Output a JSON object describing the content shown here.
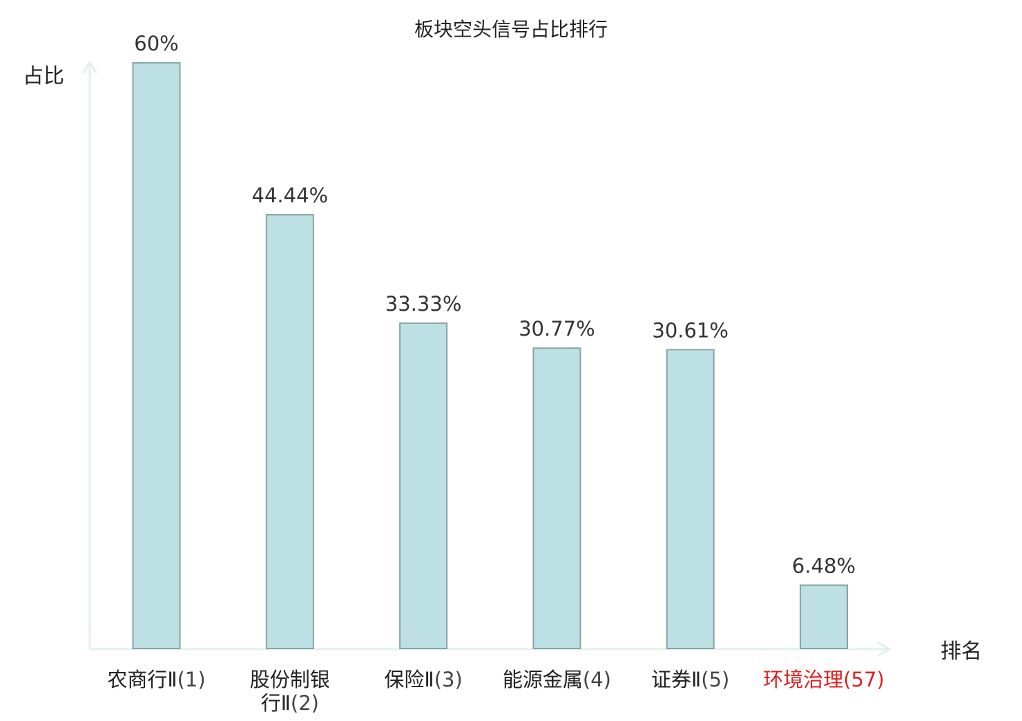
{
  "chart_data": {
    "type": "bar",
    "title": "板块空头信号占比排行",
    "ylabel": "占比",
    "xlabel": "排名",
    "ylim": [
      0,
      60
    ],
    "grid": false,
    "categories": [
      {
        "name_lines": [
          "农商行Ⅱ"
        ],
        "rank": "(1)",
        "highlight": false
      },
      {
        "name_lines": [
          "股份制银",
          "行Ⅱ"
        ],
        "rank": "(2)",
        "highlight": false
      },
      {
        "name_lines": [
          "保险Ⅱ"
        ],
        "rank": "(3)",
        "highlight": false
      },
      {
        "name_lines": [
          "能源金属"
        ],
        "rank": "(4)",
        "highlight": false
      },
      {
        "name_lines": [
          "证券Ⅱ"
        ],
        "rank": "(5)",
        "highlight": false
      },
      {
        "name_lines": [
          "环境治理"
        ],
        "rank": "(57)",
        "highlight": true
      }
    ],
    "values": [
      60,
      44.44,
      33.33,
      30.77,
      30.61,
      6.48
    ],
    "value_labels": [
      "60%",
      "44.44%",
      "33.33%",
      "30.77%",
      "30.61%",
      "6.48%"
    ]
  },
  "colors": {
    "bar_fill": "#bce0e3",
    "bar_stroke": "#8aa3a6",
    "axis": "#dff1ef",
    "text": "#333333",
    "label_text": "#222222",
    "highlight": "#e02020"
  }
}
